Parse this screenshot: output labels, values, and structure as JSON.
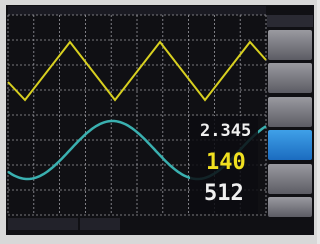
{
  "readouts": {
    "top": "2.345",
    "middle": "140",
    "bottom": "512"
  }
}
